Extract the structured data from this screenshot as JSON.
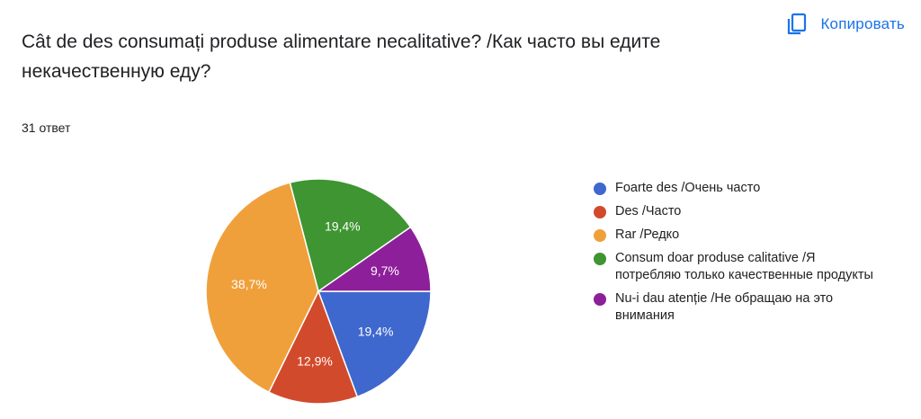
{
  "header": {
    "copy_label": "Копировать",
    "copy_icon": "copy-icon",
    "accent": "#1a73e8"
  },
  "question": {
    "title": "Cât de des consumați produse alimentare necalitative? /Как часто вы едите некачественную еду?",
    "response_count": "31 ответ"
  },
  "chart_data": {
    "type": "pie",
    "title": "Cât de des consumați produse alimentare necalitative? /Как часто вы едите некачественную еду?",
    "legend_position": "right",
    "slices": [
      {
        "label": "Foarte des /Очень часто",
        "value": 19.4,
        "display": "19,4%",
        "color": "#3e68cd"
      },
      {
        "label": "Des /Часто",
        "value": 12.9,
        "display": "12,9%",
        "color": "#d24a2c"
      },
      {
        "label": "Rar /Редко",
        "value": 38.7,
        "display": "38,7%",
        "color": "#f0a03b"
      },
      {
        "label": "Consum doar produse calitative /Я потребляю только качественные продукты",
        "value": 19.4,
        "display": "19,4%",
        "color": "#3e9532"
      },
      {
        "label": "Nu-i dau atenție /Не обращаю на это внимания",
        "value": 9.7,
        "display": "9,7%",
        "color": "#8e1f9a"
      }
    ]
  }
}
